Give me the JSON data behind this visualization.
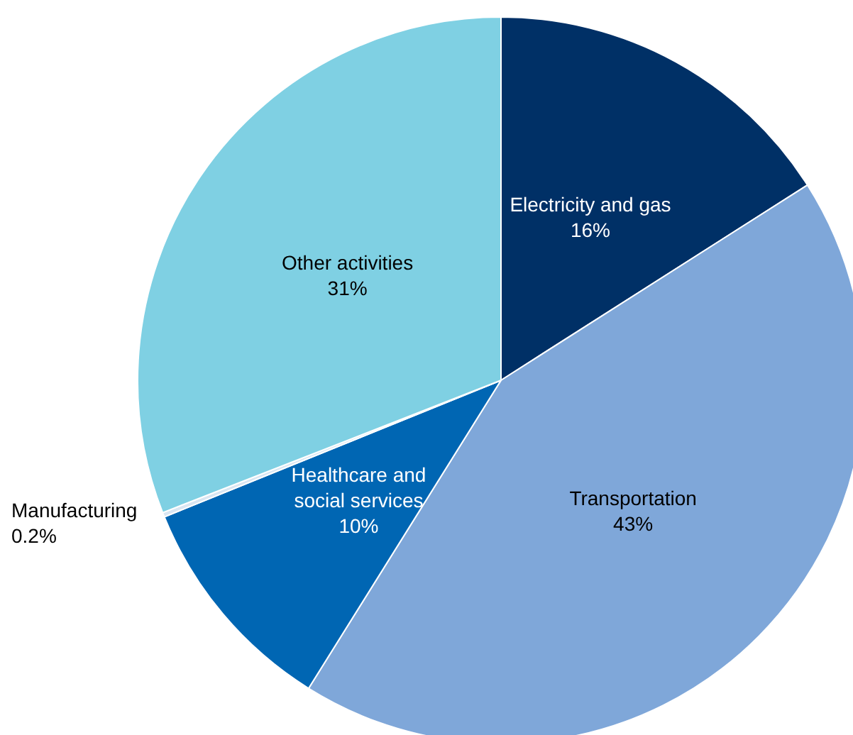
{
  "chart_data": {
    "type": "pie",
    "categories": [
      "Electricity and gas",
      "Transportation",
      "Healthcare and\nsocial services",
      "Manufacturing",
      "Other activities"
    ],
    "values": [
      16,
      43,
      10,
      0.2,
      31
    ],
    "value_labels": [
      "16%",
      "43%",
      "10%",
      "0.2%",
      "31%"
    ],
    "colors": [
      "#003066",
      "#7fa7d9",
      "#0066b3",
      "#d9e6f2",
      "#7fd0e3"
    ],
    "legend": false
  }
}
